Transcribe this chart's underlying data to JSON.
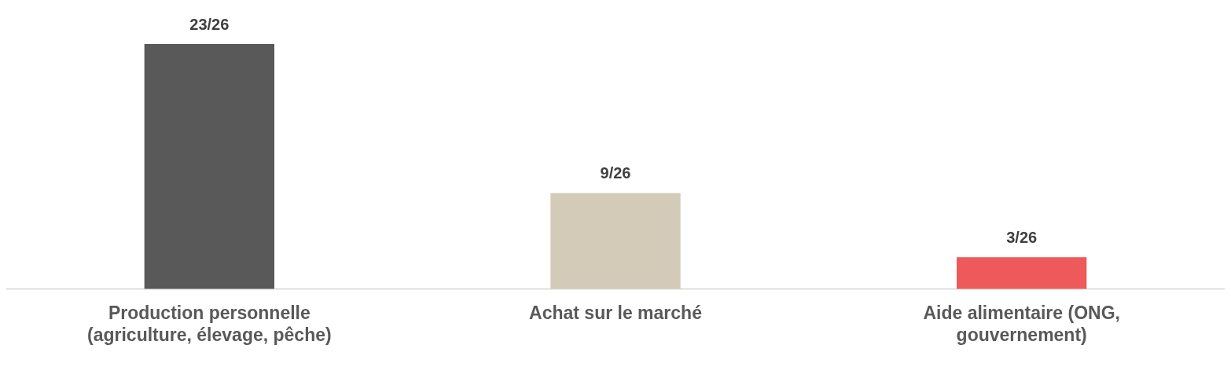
{
  "chart_data": {
    "type": "bar",
    "categories": [
      "Production personnelle (agriculture, élevage, pêche)",
      "Achat sur le marché",
      "Aide alimentaire (ONG, gouvernement)"
    ],
    "values": [
      23,
      9,
      3
    ],
    "colors": [
      "#595959",
      "#d3cbb7",
      "#ee5a5a"
    ],
    "value_labels": [
      "23/26",
      "9/26",
      "3/26"
    ],
    "grid": false,
    "legend": false
  }
}
